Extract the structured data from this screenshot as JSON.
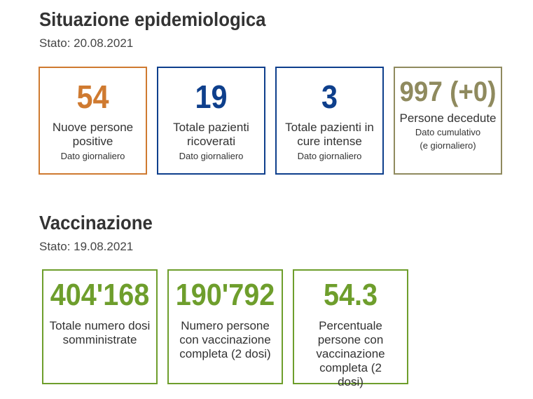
{
  "colors": {
    "orange": "#cf7a30",
    "blue": "#0e3f8c",
    "olive": "#8f8a5e",
    "green": "#6e9e2c"
  },
  "epidemiology": {
    "title": "Situazione epidemiologica",
    "date": "Stato: 20.08.2021",
    "cards": [
      {
        "value": "54",
        "label": "Nuove persone positive",
        "sub": "Dato giornaliero",
        "sub2": ""
      },
      {
        "value": "19",
        "label": "Totale pazienti ricoverati",
        "sub": "Dato giornaliero",
        "sub2": ""
      },
      {
        "value": "3",
        "label": "Totale pazienti in cure intense",
        "sub": "Dato giornaliero",
        "sub2": ""
      },
      {
        "value": "997 (+0)",
        "label": "Persone decedute",
        "sub": "Dato cumulativo",
        "sub2": "(e giornaliero)"
      }
    ]
  },
  "vaccination": {
    "title": "Vaccinazione",
    "date": "Stato: 19.08.2021",
    "cards": [
      {
        "value": "404'168",
        "label": "Totale numero dosi somministrate"
      },
      {
        "value": "190'792",
        "label": "Numero persone con vaccinazione completa (2 dosi)"
      },
      {
        "value": "54.3",
        "label": "Percentuale persone con vaccinazione completa (2 dosi)"
      }
    ]
  }
}
